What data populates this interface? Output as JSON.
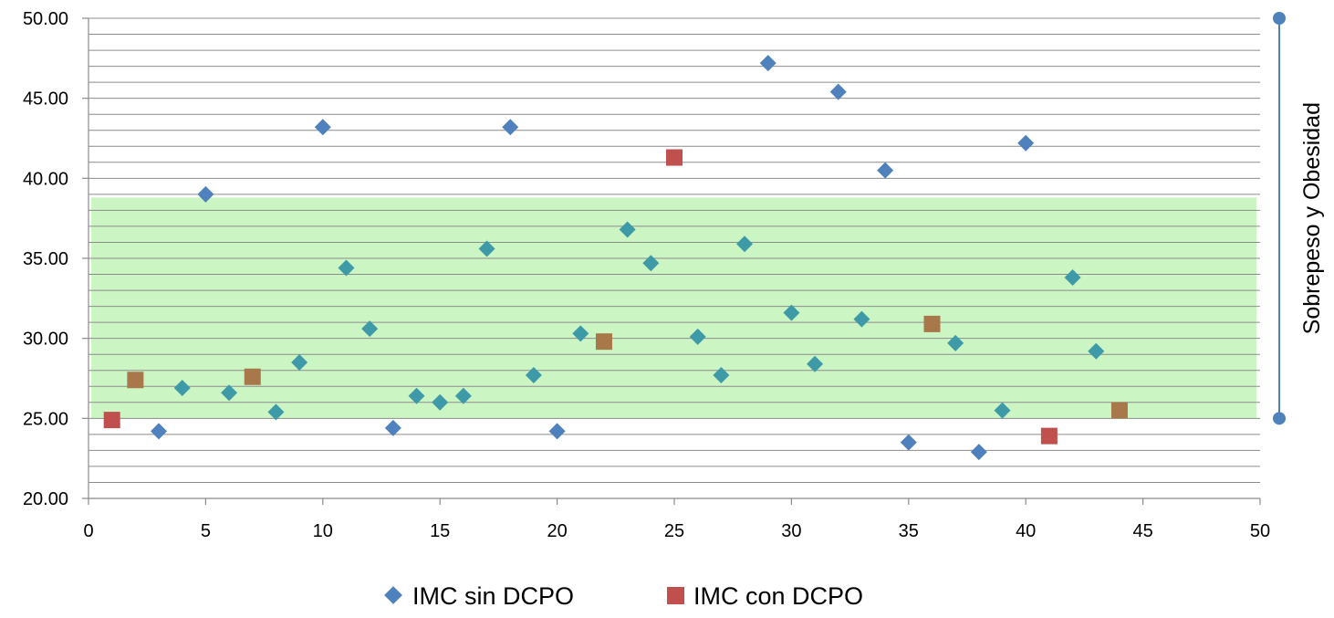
{
  "chart_data": {
    "type": "scatter",
    "xlim": [
      0,
      50
    ],
    "ylim": [
      20,
      50
    ],
    "x_ticks": [
      "0",
      "5",
      "10",
      "15",
      "20",
      "25",
      "30",
      "35",
      "40",
      "45",
      "50"
    ],
    "y_ticks": [
      "20.00",
      "25.00",
      "30.00",
      "35.00",
      "40.00",
      "45.00",
      "50.00"
    ],
    "minor_gridline_step": 1,
    "grid": true,
    "legend_position": "bottom",
    "band": {
      "y_from": 25,
      "y_to": 38.8,
      "color": "#ccf5c4"
    },
    "bracket": {
      "y_from": 25,
      "y_to": 50,
      "label": "Sobrepeso y Obesidad",
      "color": "#4f81bd"
    },
    "series": [
      {
        "name": "IMC sin DCPO",
        "marker": "diamond",
        "color": "#4f81bd",
        "points": [
          [
            3,
            24.2
          ],
          [
            4,
            26.9
          ],
          [
            5,
            39.0
          ],
          [
            6,
            26.6
          ],
          [
            8,
            25.4
          ],
          [
            9,
            28.5
          ],
          [
            10,
            43.2
          ],
          [
            11,
            34.4
          ],
          [
            12,
            30.6
          ],
          [
            13,
            24.4
          ],
          [
            14,
            26.4
          ],
          [
            15,
            26.0
          ],
          [
            16,
            26.4
          ],
          [
            17,
            35.6
          ],
          [
            18,
            43.2
          ],
          [
            19,
            27.7
          ],
          [
            20,
            24.2
          ],
          [
            21,
            30.3
          ],
          [
            23,
            36.8
          ],
          [
            24,
            34.7
          ],
          [
            26,
            30.1
          ],
          [
            27,
            27.7
          ],
          [
            28,
            35.9
          ],
          [
            29,
            47.2
          ],
          [
            30,
            31.6
          ],
          [
            31,
            28.4
          ],
          [
            32,
            45.4
          ],
          [
            33,
            31.2
          ],
          [
            34,
            40.5
          ],
          [
            35,
            23.5
          ],
          [
            37,
            29.7
          ],
          [
            38,
            22.9
          ],
          [
            39,
            25.5
          ],
          [
            40,
            42.2
          ],
          [
            42,
            33.8
          ],
          [
            43,
            29.2
          ]
        ]
      },
      {
        "name": "IMC con DCPO",
        "marker": "square",
        "color": "#c0504d",
        "points": [
          [
            1,
            24.9
          ],
          [
            2,
            27.4
          ],
          [
            7,
            27.6
          ],
          [
            22,
            29.8
          ],
          [
            25,
            41.3
          ],
          [
            36,
            30.9
          ],
          [
            41,
            23.9
          ],
          [
            44,
            25.5
          ]
        ]
      }
    ]
  }
}
